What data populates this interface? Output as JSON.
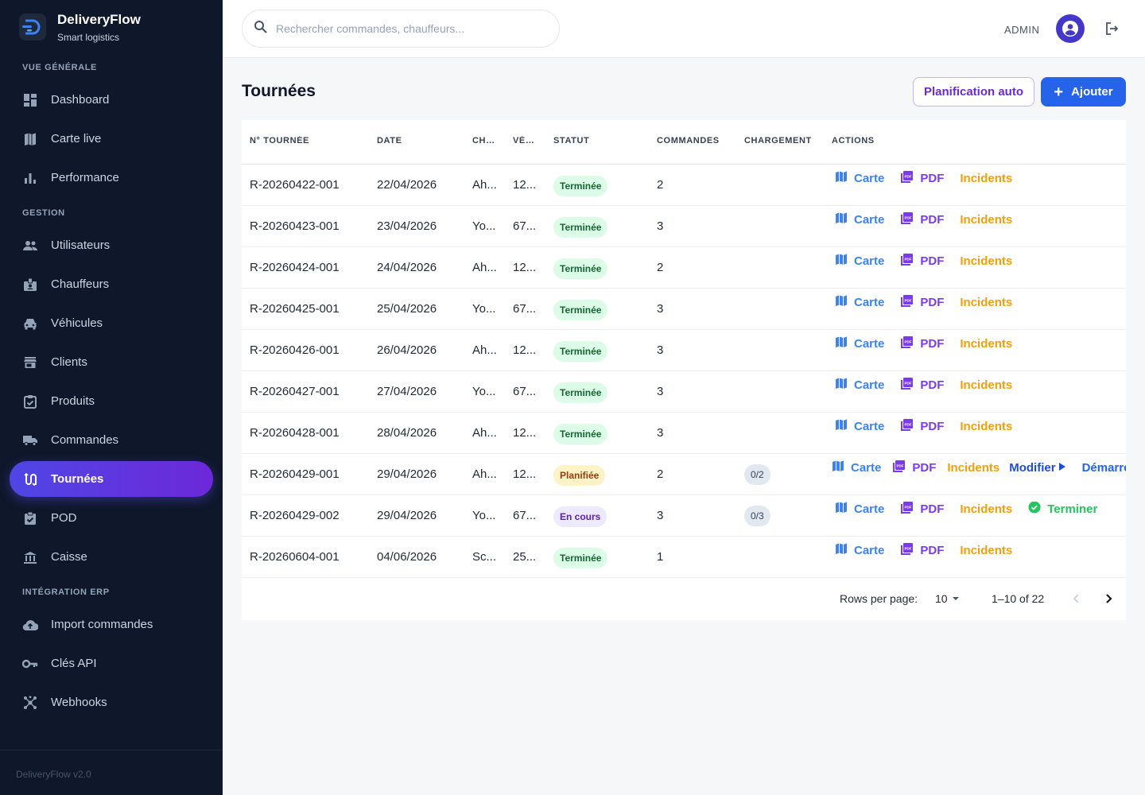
{
  "brand": {
    "name": "DeliveryFlow",
    "tagline": "Smart logistics"
  },
  "sidebar": {
    "sections": [
      {
        "title": "VUE GÉNÉRALE",
        "items": [
          {
            "label": "Dashboard",
            "icon": "dashboard-icon"
          },
          {
            "label": "Carte live",
            "icon": "map-icon"
          },
          {
            "label": "Performance",
            "icon": "bar-chart-icon"
          }
        ]
      },
      {
        "title": "GESTION",
        "items": [
          {
            "label": "Utilisateurs",
            "icon": "users-icon"
          },
          {
            "label": "Chauffeurs",
            "icon": "badge-icon"
          },
          {
            "label": "Véhicules",
            "icon": "car-icon"
          },
          {
            "label": "Clients",
            "icon": "store-icon"
          },
          {
            "label": "Produits",
            "icon": "inventory-icon"
          },
          {
            "label": "Commandes",
            "icon": "truck-icon"
          },
          {
            "label": "Tournées",
            "icon": "route-icon",
            "active": true
          },
          {
            "label": "POD",
            "icon": "checklist-icon"
          },
          {
            "label": "Caisse",
            "icon": "bank-icon"
          }
        ]
      },
      {
        "title": "INTÉGRATION ERP",
        "items": [
          {
            "label": "Import commandes",
            "icon": "cloud-upload-icon"
          },
          {
            "label": "Clés API",
            "icon": "key-icon"
          },
          {
            "label": "Webhooks",
            "icon": "webhook-icon"
          }
        ]
      }
    ],
    "version": "DeliveryFlow v2.0"
  },
  "topbar": {
    "search_placeholder": "Rechercher commandes, chauffeurs...",
    "role": "ADMIN"
  },
  "page": {
    "title": "Tournées",
    "auto_button": "Planification auto",
    "add_button": "Ajouter"
  },
  "table": {
    "headers": [
      "N° TOURNÉE",
      "DATE",
      "CHAUFFEUR",
      "VÉHICULE",
      "STATUT",
      "COMMANDES",
      "CHARGEMENT",
      "ACTIONS"
    ],
    "action_labels": {
      "carte": "Carte",
      "pdf": "PDF",
      "incidents": "Incidents",
      "modifier": "Modifier",
      "demarrer": "Démarrer",
      "terminer": "Terminer"
    },
    "rows": [
      {
        "id": "R-20260422-001",
        "date": "22/04/2026",
        "driver": "Ah...",
        "vehicle": "12...",
        "status": "Terminée",
        "status_type": "done",
        "orders": "2",
        "load": "",
        "extra": ""
      },
      {
        "id": "R-20260423-001",
        "date": "23/04/2026",
        "driver": "Yo...",
        "vehicle": "67...",
        "status": "Terminée",
        "status_type": "done",
        "orders": "3",
        "load": "",
        "extra": ""
      },
      {
        "id": "R-20260424-001",
        "date": "24/04/2026",
        "driver": "Ah...",
        "vehicle": "12...",
        "status": "Terminée",
        "status_type": "done",
        "orders": "2",
        "load": "",
        "extra": ""
      },
      {
        "id": "R-20260425-001",
        "date": "25/04/2026",
        "driver": "Yo...",
        "vehicle": "67...",
        "status": "Terminée",
        "status_type": "done",
        "orders": "3",
        "load": "",
        "extra": ""
      },
      {
        "id": "R-20260426-001",
        "date": "26/04/2026",
        "driver": "Ah...",
        "vehicle": "12...",
        "status": "Terminée",
        "status_type": "done",
        "orders": "3",
        "load": "",
        "extra": ""
      },
      {
        "id": "R-20260427-001",
        "date": "27/04/2026",
        "driver": "Yo...",
        "vehicle": "67...",
        "status": "Terminée",
        "status_type": "done",
        "orders": "3",
        "load": "",
        "extra": ""
      },
      {
        "id": "R-20260428-001",
        "date": "28/04/2026",
        "driver": "Ah...",
        "vehicle": "12...",
        "status": "Terminée",
        "status_type": "done",
        "orders": "3",
        "load": "",
        "extra": ""
      },
      {
        "id": "R-20260429-001",
        "date": "29/04/2026",
        "driver": "Ah...",
        "vehicle": "12...",
        "status": "Planifiée",
        "status_type": "planned",
        "orders": "2",
        "load": "0/2",
        "extra": "planned"
      },
      {
        "id": "R-20260429-002",
        "date": "29/04/2026",
        "driver": "Yo...",
        "vehicle": "67...",
        "status": "En cours",
        "status_type": "progress",
        "orders": "3",
        "load": "0/3",
        "extra": "progress"
      },
      {
        "id": "R-20260604-001",
        "date": "04/06/2026",
        "driver": "Sc...",
        "vehicle": "25...",
        "status": "Terminée",
        "status_type": "done",
        "orders": "1",
        "load": "",
        "extra": ""
      }
    ]
  },
  "pagination": {
    "rows_per_page_label": "Rows per page:",
    "rows_per_page": "10",
    "range": "1–10 of 22"
  },
  "colors": {
    "sidebar_bg": "#0f172a",
    "active_nav": "#4f46e5",
    "primary": "#2563eb",
    "accent_purple": "#7c3aed"
  }
}
